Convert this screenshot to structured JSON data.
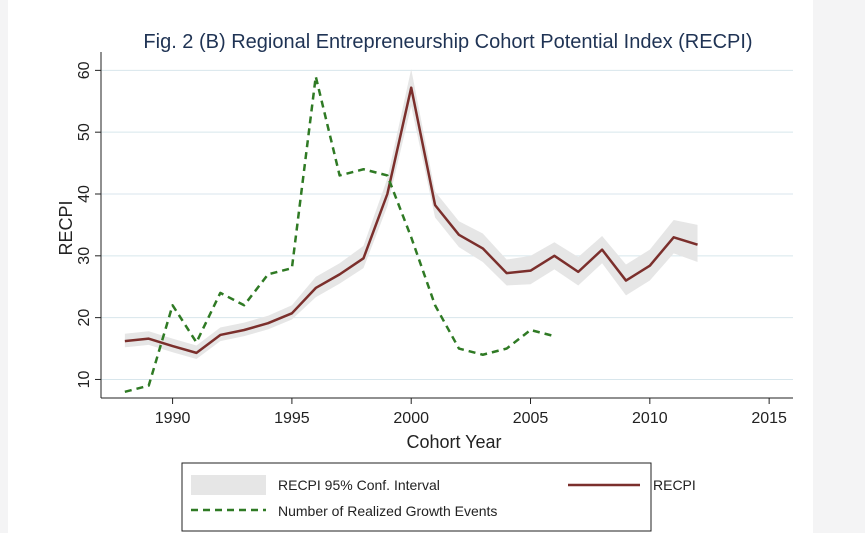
{
  "chart_data": {
    "type": "line",
    "title": "Fig. 2 (B) Regional Entrepreneurship Cohort Potential Index (RECPI)",
    "xlabel": "Cohort Year",
    "ylabel": "RECPI",
    "xlim": [
      1987,
      2016
    ],
    "ylim": [
      7,
      62
    ],
    "xticks": [
      1990,
      1995,
      2000,
      2005,
      2010,
      2015
    ],
    "yticks": [
      10,
      20,
      30,
      40,
      50,
      60
    ],
    "grid": true,
    "legend_position": "bottom",
    "series": [
      {
        "name": "RECPI",
        "color": "#7b2f2c",
        "style": "solid",
        "x": [
          1988,
          1989,
          1990,
          1991,
          1992,
          1993,
          1994,
          1995,
          1996,
          1997,
          1998,
          1999,
          2000,
          2001,
          2002,
          2003,
          2004,
          2005,
          2006,
          2007,
          2008,
          2009,
          2010,
          2011,
          2012
        ],
        "y": [
          16.2,
          16.6,
          15.4,
          14.3,
          17.2,
          18.0,
          19.1,
          20.7,
          24.8,
          27.0,
          29.6,
          40.0,
          57.2,
          38.2,
          33.4,
          31.2,
          27.2,
          27.6,
          30.0,
          27.4,
          31.0,
          26.0,
          28.4,
          33.0,
          31.8
        ],
        "ci_lower": [
          15.2,
          15.6,
          14.4,
          13.3,
          16.2,
          17.0,
          18.1,
          19.7,
          23.3,
          25.5,
          28.0,
          38.0,
          54.2,
          36.2,
          31.4,
          29.0,
          25.2,
          25.4,
          27.8,
          25.2,
          28.8,
          23.6,
          26.0,
          30.4,
          29.0
        ],
        "ci_upper": [
          17.4,
          17.8,
          16.6,
          15.5,
          18.4,
          19.2,
          20.3,
          22.0,
          26.6,
          28.8,
          31.6,
          42.5,
          60.2,
          40.4,
          35.6,
          33.6,
          29.4,
          30.0,
          32.2,
          29.8,
          33.2,
          28.6,
          31.0,
          35.8,
          35.0
        ]
      },
      {
        "name": "Number of Realized Growth Events",
        "color": "#2f7a24",
        "style": "dashed",
        "x": [
          1988,
          1989,
          1990,
          1991,
          1992,
          1993,
          1994,
          1995,
          1996,
          1997,
          1998,
          1999,
          2000,
          2001,
          2002,
          2003,
          2004,
          2005,
          2006
        ],
        "y": [
          8,
          9,
          22,
          16,
          24,
          22,
          27,
          28,
          59,
          43,
          44,
          43,
          33,
          22,
          15,
          14,
          15,
          18,
          17
        ]
      }
    ],
    "legend": [
      {
        "label": "RECPI 95% Conf. Interval",
        "kind": "band",
        "color": "#e6e6e6"
      },
      {
        "label": "RECPI",
        "kind": "solid",
        "color": "#7b2f2c"
      },
      {
        "label": "Number of Realized Growth Events",
        "kind": "dashed",
        "color": "#2f7a24"
      }
    ],
    "colors": {
      "background": "#ffffff",
      "grid": "#d8e6ec",
      "axis": "#222222",
      "ci_band": "#e6e6e6",
      "title": "#1f3354"
    }
  }
}
